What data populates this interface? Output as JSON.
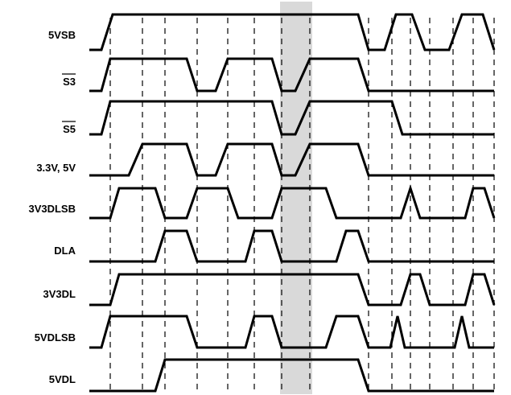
{
  "diagram": {
    "highlight_color": "#d9d9d9",
    "signals": [
      {
        "label": "5VSB",
        "overline": false
      },
      {
        "label": "S3",
        "overline": true
      },
      {
        "label": "S5",
        "overline": true
      },
      {
        "label": "3.3V, 5V",
        "overline": false
      },
      {
        "label": "3V3DLSB",
        "overline": false
      },
      {
        "label": "DLA",
        "overline": false
      },
      {
        "label": "3V3DL",
        "overline": false
      },
      {
        "label": "5VDLSB",
        "overline": false
      },
      {
        "label": "5VDL",
        "overline": false
      }
    ]
  }
}
